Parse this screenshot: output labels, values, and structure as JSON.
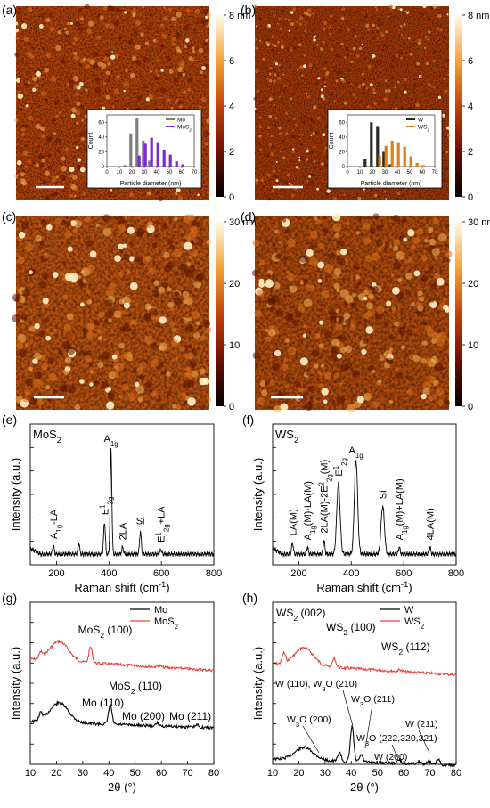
{
  "panels": {
    "a": {
      "label": "(a)"
    },
    "b": {
      "label": "(b)"
    },
    "c": {
      "label": "(c)"
    },
    "d": {
      "label": "(d)"
    },
    "e": {
      "label": "(e)"
    },
    "f": {
      "label": "(f)"
    },
    "g": {
      "label": "(g)"
    },
    "h": {
      "label": "(h)"
    }
  },
  "colorbars": {
    "top": {
      "ticks": [
        "8 nm",
        "6",
        "4",
        "2",
        "0"
      ]
    },
    "bottom": {
      "ticks": [
        "30 nm",
        "20",
        "10",
        "0"
      ]
    }
  },
  "colors": {
    "afm_dark": "#2a0400",
    "afm_mid": "#b3420a",
    "afm_light": "#ffe9b8",
    "mo": "#7f7f7f",
    "mos2": "#7a2bd6",
    "w": "#2b2b2b",
    "ws2": "#de7f1c",
    "xrd_red": "#e8413a",
    "xrd_black": "#000000"
  },
  "chart_data": [
    {
      "type": "bar",
      "panel": "a-inset",
      "xlabel": "Particle diameter (nm)",
      "ylabel": "Count",
      "xticks": [
        "0",
        "10",
        "20",
        "30",
        "40",
        "50",
        "60",
        "70"
      ],
      "yticks": [
        "0",
        "20",
        "40",
        "60"
      ],
      "xlim": [
        0,
        70
      ],
      "ylim": [
        0,
        70
      ],
      "series": [
        {
          "name": "Mo",
          "x": [
            15,
            20,
            25,
            30,
            35
          ],
          "values": [
            2,
            45,
            65,
            35,
            8
          ]
        },
        {
          "name": "MoS",
          "name_sub": "2",
          "x": [
            25,
            30,
            35,
            40,
            45,
            50,
            55,
            60
          ],
          "values": [
            15,
            31,
            39,
            33,
            23,
            16,
            7,
            3
          ]
        }
      ]
    },
    {
      "type": "bar",
      "panel": "b-inset",
      "xlabel": "Particle diameter (nm)",
      "ylabel": "Count",
      "xticks": [
        "0",
        "10",
        "20",
        "30",
        "40",
        "50",
        "60",
        "70"
      ],
      "yticks": [
        "0",
        "20",
        "40",
        "60"
      ],
      "xlim": [
        0,
        70
      ],
      "ylim": [
        0,
        70
      ],
      "series": [
        {
          "name": "W",
          "x": [
            15,
            20,
            25,
            30,
            35
          ],
          "values": [
            10,
            60,
            55,
            20,
            3
          ]
        },
        {
          "name": "WS",
          "name_sub": "2",
          "x": [
            25,
            30,
            35,
            40,
            45,
            50,
            55,
            60
          ],
          "values": [
            15,
            28,
            35,
            33,
            27,
            14,
            5,
            2
          ]
        }
      ]
    },
    {
      "type": "line",
      "panel": "e",
      "sample_label": "MoS",
      "sample_sub": "2",
      "xlabel": "Raman shift (cm",
      "xlabel_sup": "-1",
      "xlabel_end": ")",
      "ylabel": "Intensity (a.u.)",
      "xticks": [
        "200",
        "400",
        "600",
        "800"
      ],
      "xlim": [
        100,
        800
      ],
      "peaks": [
        {
          "label": "A",
          "sub": "1g",
          "tail": "-LA",
          "x": 188,
          "h": 0.07
        },
        {
          "label": "",
          "x": 285,
          "h": 0.1
        },
        {
          "label": "E",
          "sup": "1",
          "sub": "2g",
          "x": 383,
          "h": 0.28
        },
        {
          "label": "A",
          "sub": "1g",
          "x": 408,
          "h": 0.92
        },
        {
          "label": "2LA",
          "x": 452,
          "h": 0.06
        },
        {
          "label": "Si",
          "x": 520,
          "h": 0.2
        },
        {
          "label": "E",
          "sup": "1",
          "sub": "2g",
          "tail": "+LA",
          "x": 598,
          "h": 0.04
        }
      ]
    },
    {
      "type": "line",
      "panel": "f",
      "sample_label": "WS",
      "sample_sub": "2",
      "xlabel": "Raman shift (cm",
      "xlabel_sup": "-1",
      "xlabel_end": ")",
      "ylabel": "Intensity (a.u.)",
      "xticks": [
        "200",
        "400",
        "600",
        "800"
      ],
      "xlim": [
        100,
        800
      ],
      "peaks": [
        {
          "label": "LA(M)",
          "x": 176,
          "h": 0.1
        },
        {
          "label": "A",
          "sub": "1g",
          "tail": "(M)-LA(M)",
          "x": 233,
          "h": 0.06
        },
        {
          "label": "2LA(M)-2E",
          "sup": "2",
          "sub": "2g",
          "tail": "(M)",
          "x": 296,
          "h": 0.12
        },
        {
          "label": "E",
          "sup": "1",
          "sub": "2g",
          "x": 351,
          "h": 0.62
        },
        {
          "label": "A",
          "sub": "1g",
          "x": 418,
          "h": 0.82
        },
        {
          "label": "Si",
          "x": 520,
          "h": 0.42
        },
        {
          "label": "A",
          "sub": "1g",
          "tail": "(M)+LA(M)",
          "x": 583,
          "h": 0.06
        },
        {
          "label": "4LA(M)",
          "x": 700,
          "h": 0.06
        }
      ]
    },
    {
      "type": "line",
      "panel": "g",
      "xlabel": "2θ (°)",
      "ylabel": "Intensity (a.u.)",
      "xticks": [
        "10",
        "20",
        "30",
        "40",
        "50",
        "60",
        "70",
        "80"
      ],
      "xlim": [
        10,
        80
      ],
      "legend": [
        {
          "name": "Mo",
          "color": "black"
        },
        {
          "name": "MoS",
          "sub": "2",
          "color": "red"
        }
      ],
      "annotations": [
        {
          "text": "MoS",
          "sub": "2",
          "tail": " (100)",
          "series": "MoS2"
        },
        {
          "text": "MoS",
          "sub": "2",
          "tail": " (110)",
          "series": "MoS2"
        },
        {
          "text": "Mo (110)",
          "series": "Mo"
        },
        {
          "text": "Mo (200)",
          "series": "Mo"
        },
        {
          "text": "Mo (211)",
          "series": "Mo"
        }
      ],
      "red_peaks": [
        {
          "x": 14,
          "h": 0.15
        },
        {
          "x": 21,
          "h": 0.55
        },
        {
          "x": 33,
          "h": 0.45
        },
        {
          "x": 59,
          "h": 0.05
        }
      ],
      "black_peaks": [
        {
          "x": 14,
          "h": 0.2
        },
        {
          "x": 21,
          "h": 0.55
        },
        {
          "x": 40.5,
          "h": 0.55
        },
        {
          "x": 58.6,
          "h": 0.08
        },
        {
          "x": 73.7,
          "h": 0.06
        }
      ]
    },
    {
      "type": "line",
      "panel": "h",
      "xlabel": "2θ (°)",
      "ylabel": "Intensity (a.u.)",
      "xticks": [
        "10",
        "20",
        "30",
        "40",
        "50",
        "60",
        "70",
        "80"
      ],
      "xlim": [
        10,
        80
      ],
      "legend": [
        {
          "name": "W",
          "color": "black"
        },
        {
          "name": "WS",
          "sub": "2",
          "color": "red"
        }
      ],
      "annotations": [
        {
          "text": "WS",
          "sub": "2",
          "tail": " (002)"
        },
        {
          "text": "WS",
          "sub": "2",
          "tail": " (100)"
        },
        {
          "text": "WS",
          "sub": "2",
          "tail": " (112)"
        },
        {
          "text": "W (110), W",
          "sub": "3",
          "tail": "O (210)"
        },
        {
          "text": "W",
          "sub": "3",
          "tail": "O (211)"
        },
        {
          "text": "W",
          "sub": "3",
          "tail": "O (200)"
        },
        {
          "text": "W",
          "sub": "3",
          "tail": "O (222,320,321)"
        },
        {
          "text": "W (211)"
        },
        {
          "text": "W (200)"
        }
      ],
      "red_peaks": [
        {
          "x": 14.3,
          "h": 0.28
        },
        {
          "x": 22,
          "h": 0.5
        },
        {
          "x": 33.5,
          "h": 0.25
        },
        {
          "x": 58.5,
          "h": 0.05
        }
      ],
      "black_peaks": [
        {
          "x": 22,
          "h": 0.35
        },
        {
          "x": 35.5,
          "h": 0.25
        },
        {
          "x": 40.3,
          "h": 1.0
        },
        {
          "x": 43.8,
          "h": 0.2
        },
        {
          "x": 58.3,
          "h": 0.1
        },
        {
          "x": 66,
          "h": 0.08
        },
        {
          "x": 69.5,
          "h": 0.1
        },
        {
          "x": 73.2,
          "h": 0.14
        }
      ]
    }
  ]
}
